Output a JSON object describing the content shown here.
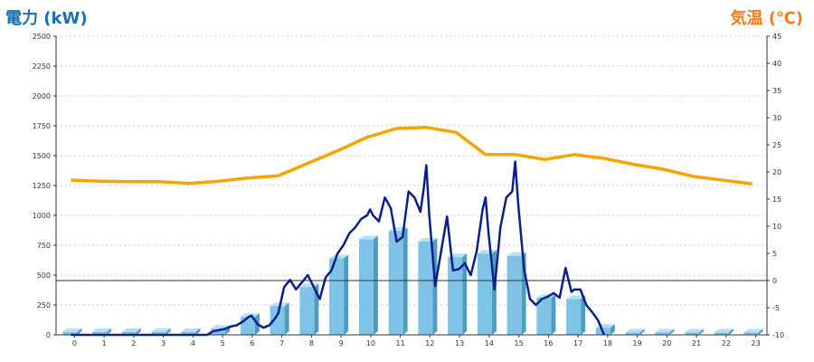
{
  "chart_data": {
    "type": "bar",
    "title_left": "電力 (kW)",
    "title_right": "気温 (℃)",
    "categories": [
      "0",
      "1",
      "2",
      "3",
      "4",
      "5",
      "6",
      "7",
      "8",
      "9",
      "10",
      "11",
      "12",
      "13",
      "14",
      "15",
      "16",
      "17",
      "18",
      "19",
      "20",
      "21",
      "22",
      "23"
    ],
    "y_left": {
      "min": 0,
      "max": 2500,
      "ticks": [
        "0",
        "250",
        "500",
        "750",
        "1000",
        "1250",
        "1500",
        "1750",
        "2000",
        "2250",
        "2500"
      ]
    },
    "y_right": {
      "min": -10,
      "max": 45,
      "ticks": [
        "-10",
        "-5",
        "0",
        "5",
        "10",
        "15",
        "20",
        "25",
        "30",
        "35",
        "40",
        "45"
      ]
    },
    "grid": true,
    "series": [
      {
        "type": "bar",
        "axis": "left",
        "color": "#7fc4e6",
        "values": [
          25,
          25,
          25,
          25,
          25,
          50,
          150,
          240,
          400,
          640,
          800,
          870,
          780,
          650,
          680,
          660,
          310,
          300,
          60,
          20,
          20,
          20,
          20,
          20
        ]
      },
      {
        "type": "line",
        "axis": "left",
        "color": "#0a1e8c",
        "x": [
          0,
          0.5,
          1,
          1.5,
          2,
          2.5,
          3,
          3.5,
          4,
          4.3,
          4.6,
          4.8,
          5.0,
          5.2,
          5.4,
          5.6,
          5.8,
          6.0,
          6.1,
          6.3,
          6.5,
          6.7,
          6.9,
          7.0,
          7.2,
          7.4,
          7.6,
          7.8,
          8.0,
          8.2,
          8.4,
          8.6,
          8.8,
          9.0,
          9.2,
          9.4,
          9.6,
          9.8,
          10.0,
          10.1,
          10.2,
          10.4,
          10.6,
          10.8,
          11.0,
          11.2,
          11.4,
          11.6,
          11.8,
          11.9,
          12.0,
          12.1,
          12.3,
          12.5,
          12.7,
          12.9,
          13.1,
          13.3,
          13.5,
          13.7,
          13.9,
          14.0,
          14.1,
          14.3,
          14.5,
          14.7,
          14.9,
          15.0,
          15.1,
          15.3,
          15.5,
          15.7,
          15.9,
          16.1,
          16.3,
          16.5,
          16.7,
          16.9,
          17.0,
          17.2,
          17.4,
          17.6,
          17.8,
          18.0
        ],
        "values": [
          0,
          0,
          0,
          0,
          0,
          0,
          0,
          0,
          0,
          0,
          0,
          30,
          40,
          50,
          70,
          80,
          110,
          150,
          160,
          90,
          60,
          80,
          140,
          180,
          400,
          460,
          380,
          440,
          500,
          400,
          300,
          480,
          540,
          680,
          750,
          850,
          900,
          970,
          1000,
          1050,
          1000,
          950,
          1150,
          1060,
          780,
          820,
          1200,
          1150,
          1030,
          1200,
          1420,
          1000,
          410,
          700,
          990,
          540,
          550,
          600,
          500,
          700,
          1050,
          1150,
          850,
          380,
          900,
          1150,
          1200,
          1450,
          1100,
          550,
          300,
          250,
          300,
          320,
          350,
          310,
          560,
          360,
          380,
          380,
          250,
          190,
          120,
          0
        ]
      },
      {
        "type": "line",
        "axis": "right",
        "color": "#f5a400",
        "x": [
          0,
          1,
          2,
          3,
          4,
          5,
          6,
          7,
          8,
          9,
          10,
          11,
          12,
          13,
          14,
          15,
          16,
          17,
          18,
          19,
          20,
          21,
          22,
          23
        ],
        "values": [
          18.5,
          18.3,
          18.2,
          18.2,
          17.9,
          18.3,
          18.9,
          19.3,
          21.6,
          23.9,
          26.4,
          28,
          28.2,
          27.3,
          23.2,
          23.2,
          22.3,
          23.2,
          22.5,
          21.4,
          20.5,
          19.2,
          18.5,
          17.8
        ]
      }
    ]
  }
}
